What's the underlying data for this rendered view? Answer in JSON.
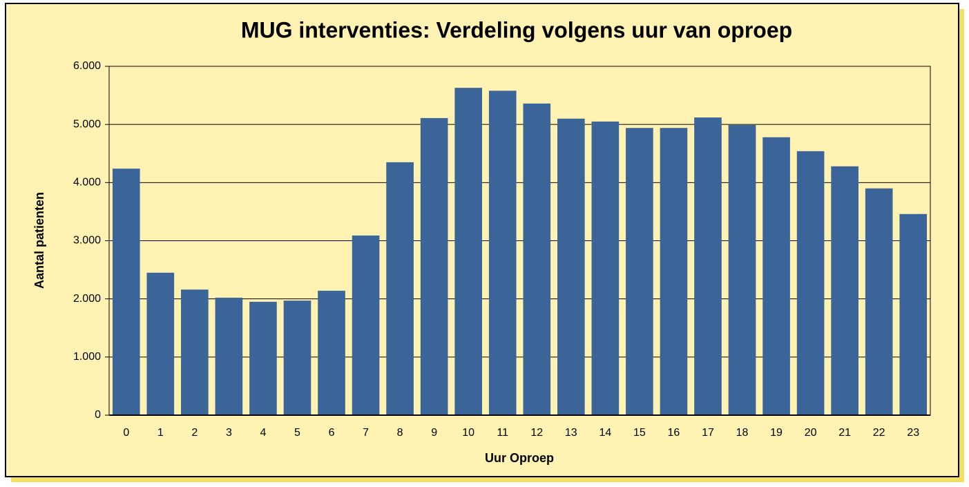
{
  "chart_data": {
    "type": "bar",
    "title": "MUG interventies: Verdeling volgens uur van oproep",
    "x_label": "Uur Oproep",
    "y_label": "Aantal patienten",
    "categories": [
      "0",
      "1",
      "2",
      "3",
      "4",
      "5",
      "6",
      "7",
      "8",
      "9",
      "10",
      "11",
      "12",
      "13",
      "14",
      "15",
      "16",
      "17",
      "18",
      "19",
      "20",
      "21",
      "22",
      "23"
    ],
    "values": [
      4240,
      2450,
      2160,
      2020,
      1950,
      1970,
      2140,
      3090,
      4350,
      5110,
      5630,
      5580,
      5360,
      5100,
      5050,
      4940,
      4940,
      5120,
      4990,
      4780,
      4540,
      4280,
      3900,
      3460
    ],
    "color": "#3b6598",
    "ylim": [
      0,
      6000
    ],
    "yticks": [
      0,
      {
        "value": 1000,
        "label": "1.000"
      },
      {
        "value": 2000,
        "label": "2.000"
      },
      {
        "value": 3000,
        "label": "3.000"
      },
      {
        "value": 4000,
        "label": "4.000"
      },
      {
        "value": 5000,
        "label": "5.000"
      },
      {
        "value": 6000,
        "label": "6.000"
      }
    ],
    "grid": true
  }
}
